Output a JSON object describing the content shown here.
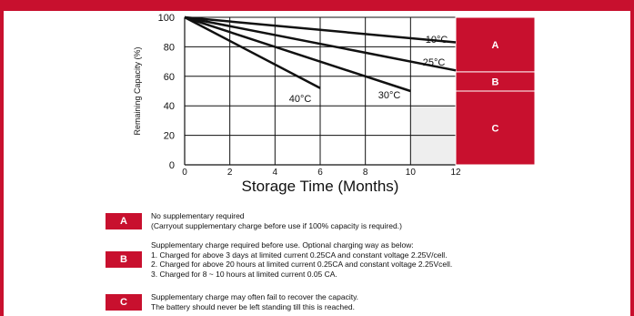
{
  "chart_data": {
    "type": "line",
    "xlabel": "Storage Time (Months)",
    "ylabel": "Remaining Capacity (%)",
    "xlim": [
      0,
      12
    ],
    "ylim": [
      0,
      100
    ],
    "xticks": [
      "0",
      "2",
      "4",
      "6",
      "8",
      "10",
      "12"
    ],
    "yticks": [
      "0",
      "20",
      "40",
      "60",
      "80",
      "100"
    ],
    "series": [
      {
        "name": "10°C",
        "x": [
          0,
          12
        ],
        "y": [
          100,
          83
        ]
      },
      {
        "name": "25°C",
        "x": [
          0,
          12
        ],
        "y": [
          100,
          64
        ]
      },
      {
        "name": "30°C",
        "x": [
          0,
          10
        ],
        "y": [
          100,
          50
        ]
      },
      {
        "name": "40°C",
        "x": [
          0,
          6
        ],
        "y": [
          100,
          52
        ]
      }
    ],
    "zones": [
      {
        "label": "A",
        "ymin": 63,
        "ymax": 100
      },
      {
        "label": "B",
        "ymin": 50,
        "ymax": 63
      },
      {
        "label": "C",
        "ymin": 0,
        "ymax": 50
      }
    ],
    "shaded_region": {
      "xmin": 10,
      "xmax": 12,
      "ymin": 0,
      "ymax": 40
    },
    "colors": {
      "accent": "#c8102e",
      "line": "#111111",
      "shade": "#eeeeee"
    }
  },
  "legend": [
    {
      "label": "A",
      "lines": [
        "No supplementary required",
        "(Carryout supplementary charge before use if 100% capacity is required.)"
      ]
    },
    {
      "label": "B",
      "lines": [
        "Supplementary charge required before use. Optional charging way as below:",
        "1. Charged for above 3 days at limited current 0.25CA and constant voltage 2.25V/cell.",
        "2. Charged for above 20 hours at limited current 0.25CA and constant voltage 2.25Vcell.",
        "3. Charged for 8 ~ 10 hours at limited current 0.05 CA."
      ]
    },
    {
      "label": "C",
      "lines": [
        "Supplementary charge may often fail to recover the capacity.",
        "The battery should never be left standing till this is reached."
      ]
    }
  ]
}
